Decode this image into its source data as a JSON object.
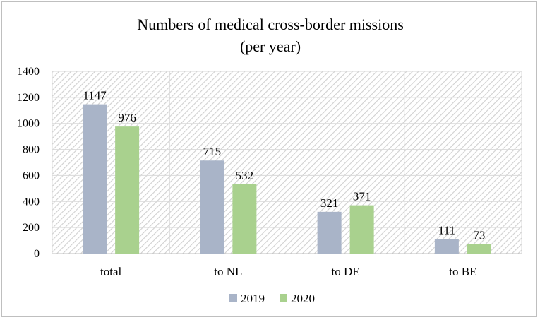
{
  "chart_data": {
    "type": "bar",
    "title_lines": [
      "Numbers of medical cross-border missions",
      "(per year)"
    ],
    "categories": [
      "total",
      "to NL",
      "to DE",
      "to BE"
    ],
    "series": [
      {
        "name": "2019",
        "values": [
          1147,
          715,
          321,
          111
        ],
        "color": "#a9b4c8"
      },
      {
        "name": "2020",
        "values": [
          976,
          532,
          371,
          73
        ],
        "color": "#a9d18e"
      }
    ],
    "ylim": [
      0,
      1400
    ],
    "yticks": [
      0,
      200,
      400,
      600,
      800,
      1000,
      1200,
      1400
    ],
    "yticks_text": [
      "0",
      "200",
      "400",
      "600",
      "800",
      "1000",
      "1200",
      "1400"
    ],
    "legend_position": "bottom",
    "grid": true
  }
}
